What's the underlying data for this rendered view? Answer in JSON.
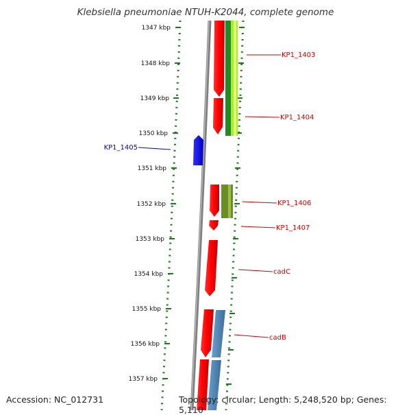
{
  "title": "Klebsiella pneumoniae NTUH-K2044, complete genome",
  "accession": "Accession: NC_012731",
  "topology": "Topology: circular; Length: 5,248,520 bp; Genes: 5,110",
  "ruler": [
    {
      "label": "1347 kbp",
      "kbp": 1347
    },
    {
      "label": "1348 kbp",
      "kbp": 1348
    },
    {
      "label": "1349 kbp",
      "kbp": 1349
    },
    {
      "label": "1350 kbp",
      "kbp": 1350
    },
    {
      "label": "1351 kbp",
      "kbp": 1351
    },
    {
      "label": "1352 kbp",
      "kbp": 1352
    },
    {
      "label": "1353 kbp",
      "kbp": 1353
    },
    {
      "label": "1354 kbp",
      "kbp": 1354
    },
    {
      "label": "1355 kbp",
      "kbp": 1355
    },
    {
      "label": "1356 kbp",
      "kbp": 1356
    },
    {
      "label": "1357 kbp",
      "kbp": 1357
    }
  ],
  "gene_labels": [
    {
      "name": "KP1_1403",
      "color": "#cc0000",
      "side": "right"
    },
    {
      "name": "KP1_1404",
      "color": "#cc0000",
      "side": "right"
    },
    {
      "name": "KP1_1405",
      "color": "#0000cc",
      "side": "left"
    },
    {
      "name": "KP1_1406",
      "color": "#cc0000",
      "side": "right"
    },
    {
      "name": "KP1_1407",
      "color": "#cc0000",
      "side": "right"
    },
    {
      "name": "cadC",
      "color": "#cc0000",
      "side": "right"
    },
    {
      "name": "cadB",
      "color": "#cc0000",
      "side": "right"
    }
  ],
  "colors": {
    "cds_forward": "#ff0000",
    "cds_reverse": "#0000ff",
    "ruler": "#1a7a1a",
    "backbone": "#808080",
    "annotation_lime": "#aaee22",
    "annotation_green": "#228b22",
    "annotation_olive": "#6b8e23",
    "annotation_steel": "#4682b4"
  }
}
